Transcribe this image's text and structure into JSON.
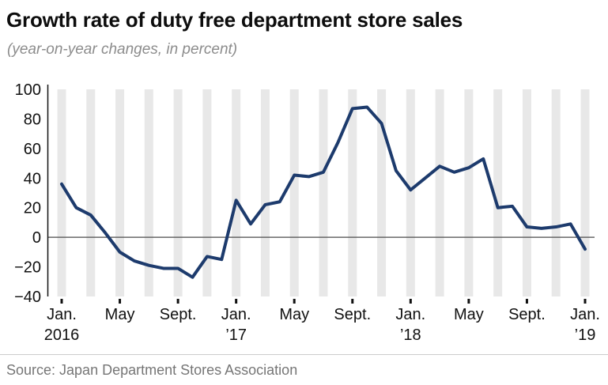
{
  "title": "Growth rate of duty free department store sales",
  "subtitle": "(year-on-year changes, in percent)",
  "source": "Source: Japan Department Stores Association",
  "chart_data": {
    "type": "line",
    "title": "Growth rate of duty free department store sales",
    "subtitle": "(year-on-year changes, in percent)",
    "ylabel": "percent (year-on-year change)",
    "xlabel": "",
    "ylim": [
      -40,
      100
    ],
    "y_ticks": [
      100,
      80,
      60,
      40,
      20,
      0,
      -20,
      -40
    ],
    "grid": "zero-line-only",
    "legend": "none",
    "background_stripes": "every-2-months",
    "stripe_every": 2,
    "line_color": "#1d3b6d",
    "stripe_color": "#e8e8e8",
    "zero_line_color": "#4a4a4a",
    "axis_color": "#111111",
    "months": [
      "Jan 2016",
      "Feb 2016",
      "Mar 2016",
      "Apr 2016",
      "May 2016",
      "Jun 2016",
      "Jul 2016",
      "Aug 2016",
      "Sep 2016",
      "Oct 2016",
      "Nov 2016",
      "Dec 2016",
      "Jan 2017",
      "Feb 2017",
      "Mar 2017",
      "Apr 2017",
      "May 2017",
      "Jun 2017",
      "Jul 2017",
      "Aug 2017",
      "Sep 2017",
      "Oct 2017",
      "Nov 2017",
      "Dec 2017",
      "Jan 2018",
      "Feb 2018",
      "Mar 2018",
      "Apr 2018",
      "May 2018",
      "Jun 2018",
      "Jul 2018",
      "Aug 2018",
      "Sep 2018",
      "Oct 2018",
      "Nov 2018",
      "Dec 2018",
      "Jan 2019"
    ],
    "values": [
      36,
      20,
      15,
      3,
      -10,
      -16,
      -19,
      -21,
      -21,
      -27,
      -13,
      -15,
      25,
      9,
      22,
      24,
      42,
      41,
      44,
      64,
      87,
      88,
      77,
      45,
      32,
      40,
      48,
      44,
      47,
      53,
      20,
      21,
      7,
      6,
      7,
      9,
      -8
    ],
    "x_tick_labels": [
      {
        "m": 0,
        "l1": "Jan.",
        "l2": "2016"
      },
      {
        "m": 4,
        "l1": "May",
        "l2": ""
      },
      {
        "m": 8,
        "l1": "Sept.",
        "l2": ""
      },
      {
        "m": 12,
        "l1": "Jan.",
        "l2": "’17"
      },
      {
        "m": 16,
        "l1": "May",
        "l2": ""
      },
      {
        "m": 20,
        "l1": "Sept.",
        "l2": ""
      },
      {
        "m": 24,
        "l1": "Jan.",
        "l2": "’18"
      },
      {
        "m": 28,
        "l1": "May",
        "l2": ""
      },
      {
        "m": 32,
        "l1": "Sept.",
        "l2": ""
      },
      {
        "m": 36,
        "l1": "Jan.",
        "l2": "’19"
      }
    ]
  }
}
